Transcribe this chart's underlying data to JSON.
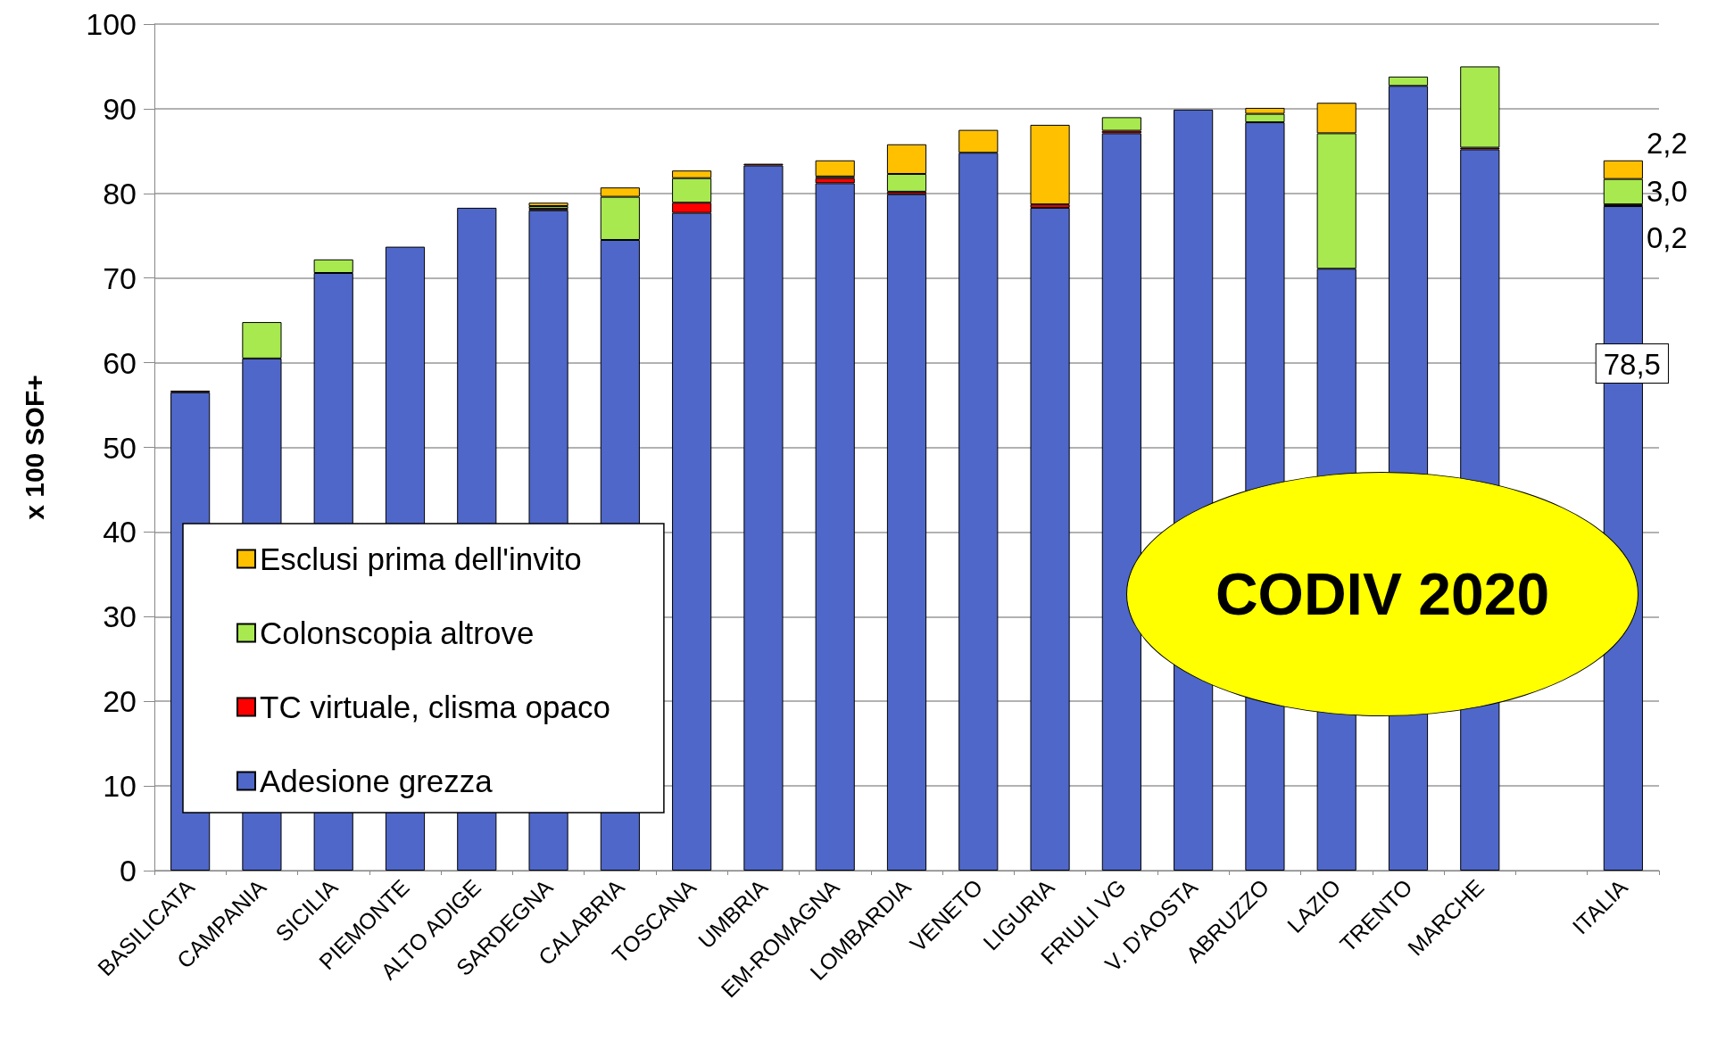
{
  "chart_data": {
    "type": "bar",
    "stacked": true,
    "ylabel": "x 100 SOF+",
    "categories": [
      "BASILICATA",
      "CAMPANIA",
      "SICILIA",
      "PIEMONTE",
      "ALTO ADIGE",
      "SARDEGNA",
      "CALABRIA",
      "TOSCANA",
      "UMBRIA",
      "EM-ROMAGNA",
      "LOMBARDIA",
      "VENETO",
      "LIGURIA",
      "FRIULI VG",
      "V. D'AOSTA",
      "ABRUZZO",
      "LAZIO",
      "TRENTO",
      "MARCHE",
      null,
      "ITALIA"
    ],
    "series": [
      {
        "name": "Adesione grezza",
        "color": "#4f67c8",
        "values": [
          56.5,
          60.5,
          70.6,
          73.7,
          78.3,
          78.0,
          74.5,
          77.7,
          83.3,
          81.2,
          79.9,
          84.8,
          78.3,
          87.1,
          89.9,
          88.4,
          71.1,
          92.7,
          85.2,
          null,
          78.5
        ],
        "value_labels": [
          null,
          null,
          null,
          null,
          null,
          null,
          null,
          null,
          null,
          null,
          null,
          null,
          null,
          null,
          null,
          null,
          null,
          null,
          null,
          null,
          "78,5"
        ]
      },
      {
        "name": "TC virtuale, clisma opaco",
        "color": "#ff0000",
        "values": [
          0.2,
          0,
          0,
          0,
          0,
          0.2,
          0,
          1.2,
          0.2,
          0.6,
          0.3,
          0,
          0.4,
          0.3,
          0,
          0,
          0,
          0,
          0.2,
          null,
          0.2
        ],
        "value_labels": [
          null,
          null,
          null,
          null,
          null,
          null,
          null,
          null,
          null,
          null,
          null,
          null,
          null,
          null,
          null,
          null,
          null,
          null,
          null,
          null,
          "0,2"
        ]
      },
      {
        "name": "Colonscopia altrove",
        "color": "#a8e94f",
        "values": [
          0,
          4.3,
          1.6,
          0,
          0,
          0.3,
          5.1,
          2.9,
          0,
          0.2,
          2.1,
          0,
          0,
          1.6,
          0,
          1.0,
          16.0,
          1.1,
          9.6,
          null,
          3.0
        ],
        "value_labels": [
          null,
          null,
          null,
          null,
          null,
          null,
          null,
          null,
          null,
          null,
          null,
          null,
          null,
          null,
          null,
          null,
          null,
          null,
          null,
          null,
          "3,0"
        ]
      },
      {
        "name": "Esclusi prima dell'invito",
        "color": "#ffc000",
        "values": [
          0,
          0,
          0,
          0,
          0,
          0.4,
          1.1,
          0.9,
          0,
          1.9,
          3.5,
          2.7,
          9.4,
          0,
          0,
          0.7,
          3.6,
          0,
          0,
          null,
          2.2
        ],
        "value_labels": [
          null,
          null,
          null,
          null,
          null,
          null,
          null,
          null,
          null,
          null,
          null,
          null,
          null,
          null,
          null,
          null,
          null,
          null,
          null,
          null,
          "2,2"
        ]
      }
    ],
    "ylim": [
      0,
      100
    ],
    "yticks": [
      0,
      10,
      20,
      30,
      40,
      50,
      60,
      70,
      80,
      90,
      100
    ],
    "grid": "y",
    "legend": "bottom left",
    "annotations": [
      "CODIV 2020"
    ]
  }
}
